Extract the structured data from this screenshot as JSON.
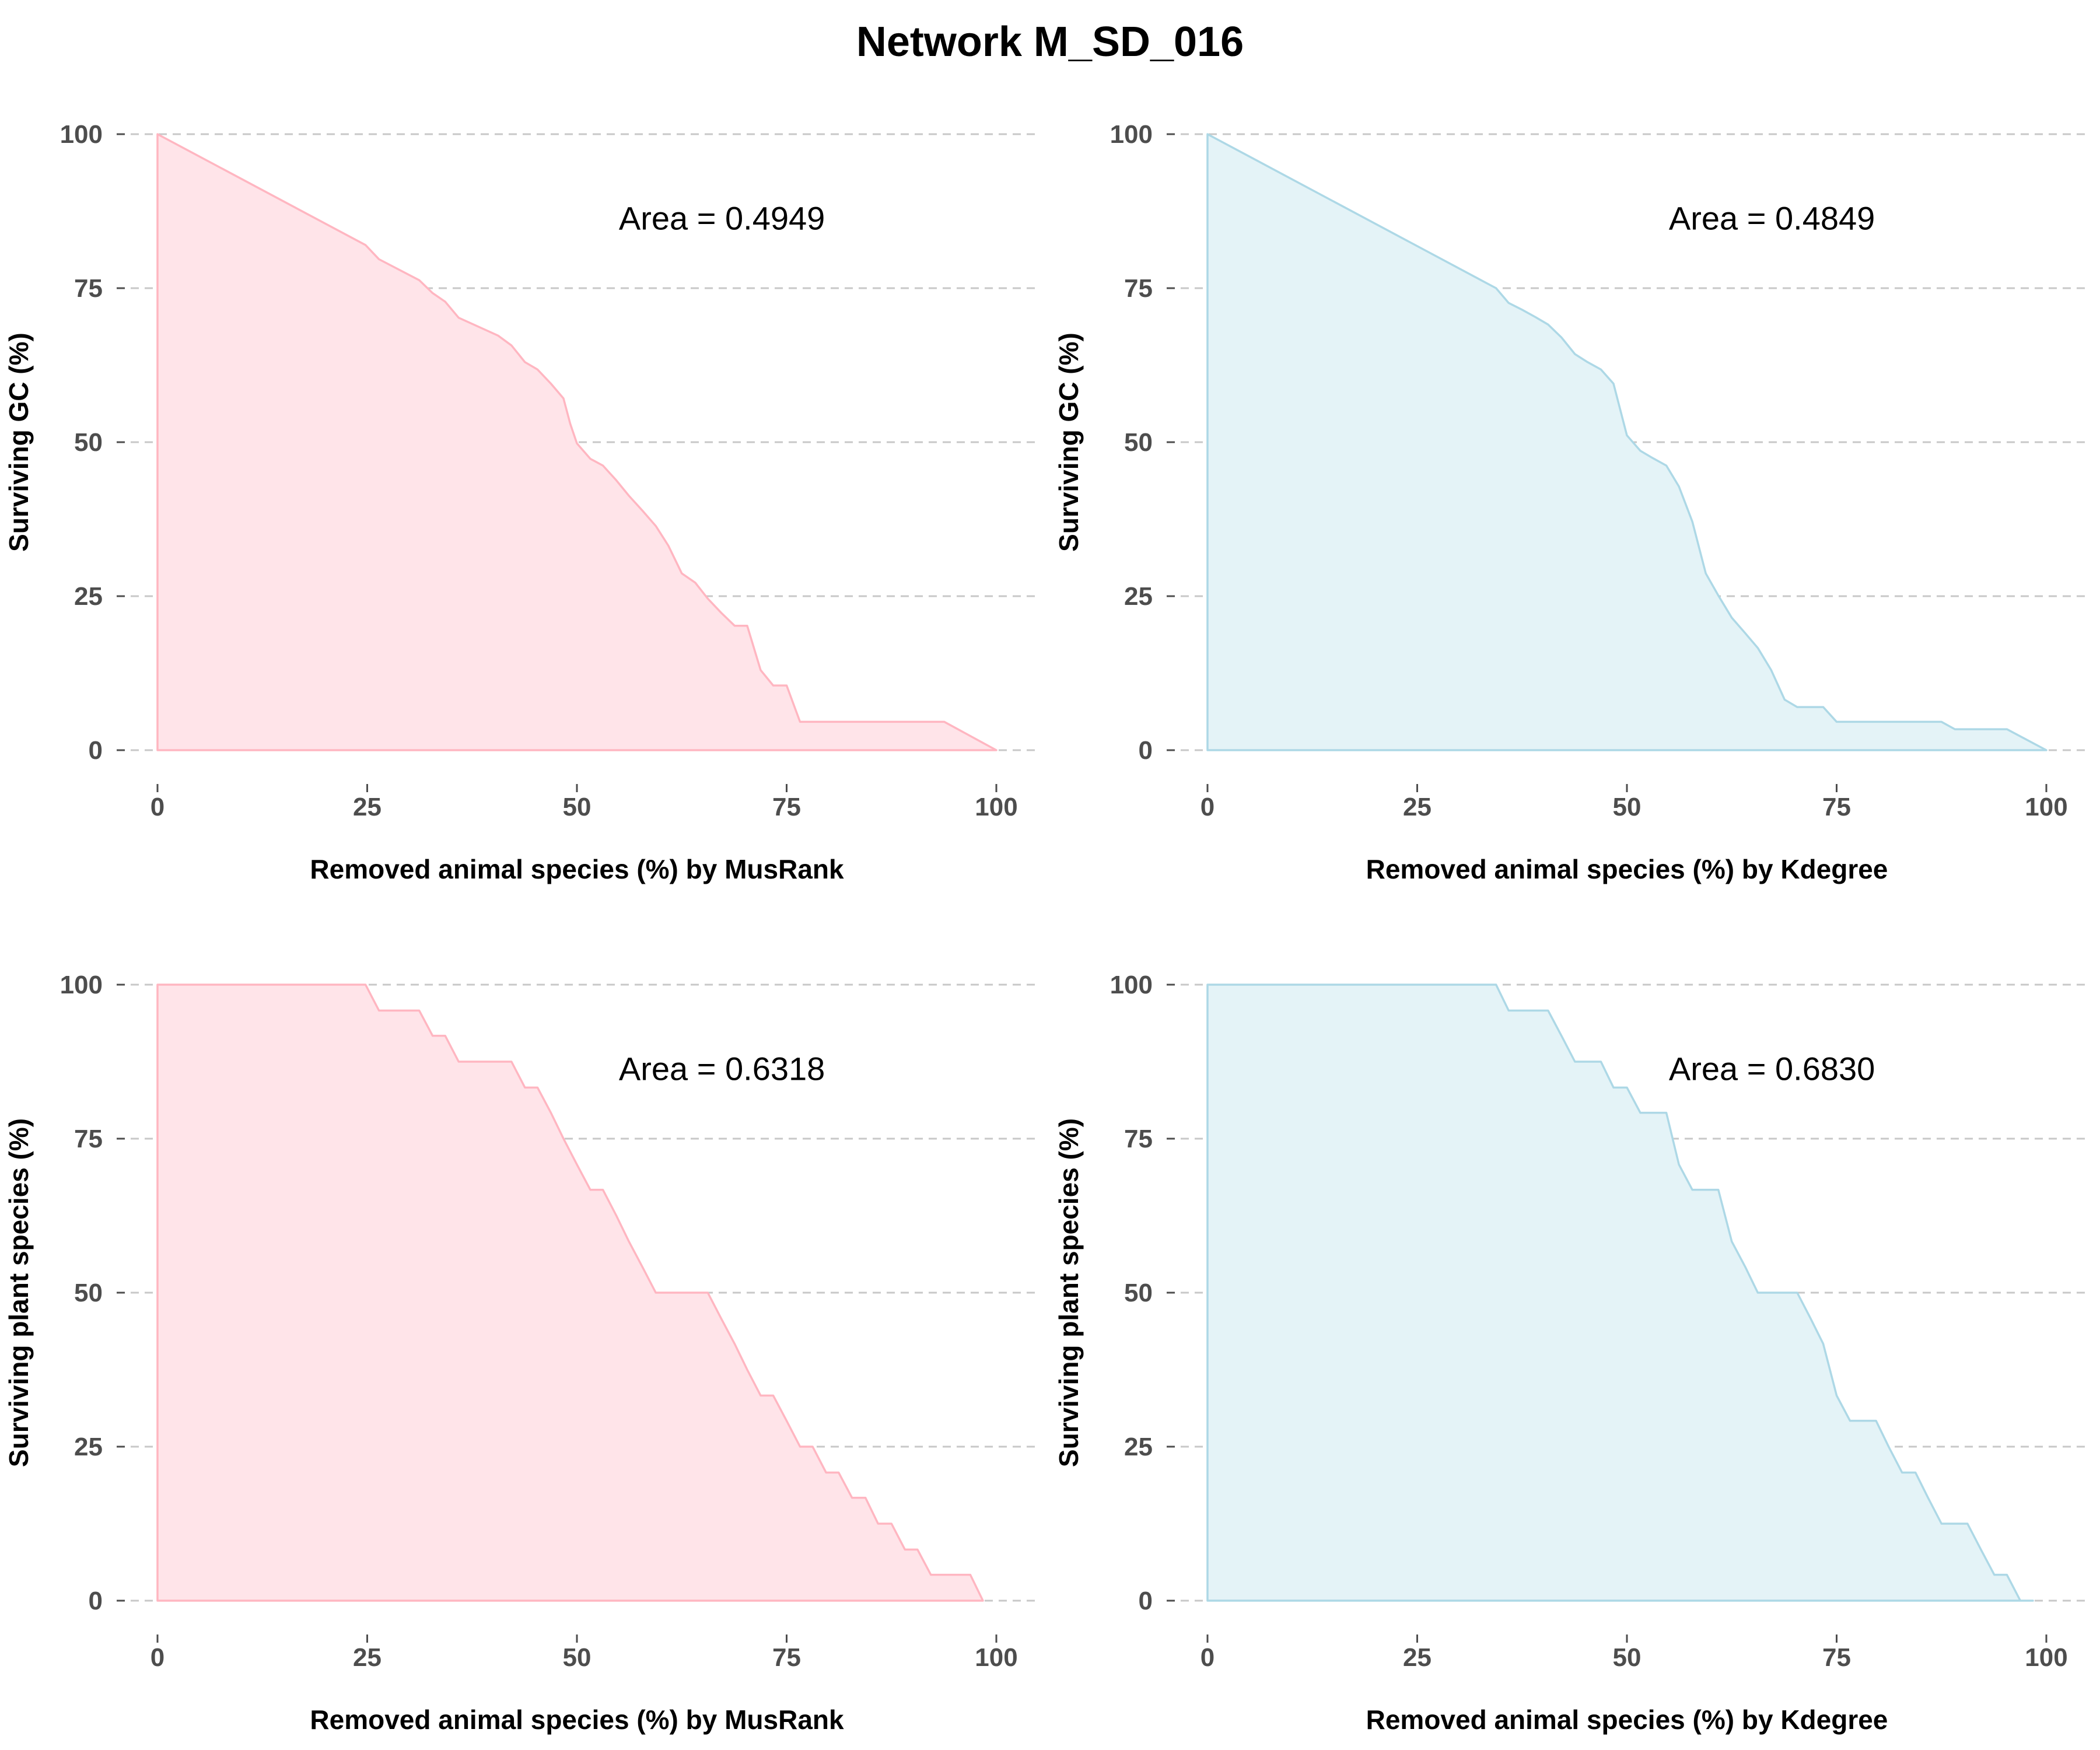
{
  "title": "Network M_SD_016",
  "chart_data": [
    {
      "type": "area",
      "xlabel": "Removed animal species (%) by MusRank",
      "ylabel": "Surviving GC (%)",
      "annotation": "Area = 0.4949",
      "xlim": [
        0,
        100
      ],
      "ylim": [
        0,
        100
      ],
      "xticks": [
        "0",
        "25",
        "50",
        "75",
        "100"
      ],
      "yticks": [
        "0",
        "25",
        "50",
        "75",
        "100"
      ],
      "grid": "horizontal dashed",
      "line_color": "#ffb6c1",
      "fill_color": "#ffe4e9",
      "x": [
        0,
        24.8,
        26.4,
        31.2,
        32.8,
        34.3,
        35.9,
        40.6,
        42.2,
        43.8,
        45.3,
        46.9,
        48.4,
        49.2,
        50.0,
        51.6,
        53.1,
        54.7,
        56.2,
        57.8,
        59.4,
        60.9,
        62.5,
        64.1,
        65.6,
        67.2,
        68.8,
        70.3,
        71.9,
        73.4,
        75.0,
        76.6,
        78.1,
        79.7,
        81.2,
        93.8,
        100
      ],
      "y": [
        100,
        82.0,
        79.7,
        76.3,
        74.2,
        72.8,
        70.2,
        67.3,
        65.7,
        63.0,
        61.8,
        59.5,
        57.1,
        53.0,
        49.8,
        47.3,
        46.2,
        43.8,
        41.3,
        38.9,
        36.4,
        33.2,
        28.7,
        27.2,
        24.6,
        22.3,
        20.2,
        20.2,
        13.0,
        10.5,
        10.5,
        4.6,
        4.6,
        4.6,
        4.6,
        4.6,
        0
      ]
    },
    {
      "type": "area",
      "xlabel": "Removed animal species (%) by Kdegree",
      "ylabel": "Surviving GC (%)",
      "annotation": "Area = 0.4849",
      "xlim": [
        0,
        100
      ],
      "ylim": [
        0,
        100
      ],
      "xticks": [
        "0",
        "25",
        "50",
        "75",
        "100"
      ],
      "yticks": [
        "0",
        "25",
        "50",
        "75",
        "100"
      ],
      "grid": "horizontal dashed",
      "line_color": "#add8e6",
      "fill_color": "#e4f3f7",
      "x": [
        0,
        34.4,
        35.9,
        37.5,
        39.1,
        40.6,
        42.2,
        43.8,
        45.3,
        46.9,
        48.4,
        50.0,
        51.6,
        53.1,
        54.7,
        56.2,
        57.8,
        59.4,
        60.9,
        62.5,
        64.1,
        65.6,
        67.2,
        68.8,
        70.3,
        71.9,
        73.4,
        75.0,
        76.6,
        78.1,
        79.7,
        81.2,
        82.8,
        84.4,
        85.9,
        87.5,
        89.1,
        90.6,
        92.2,
        93.8,
        95.3,
        100
      ],
      "y": [
        100,
        75.0,
        72.6,
        71.5,
        70.3,
        69.1,
        67.0,
        64.3,
        63.0,
        61.8,
        59.5,
        51.1,
        48.6,
        47.4,
        46.2,
        42.8,
        37.1,
        28.7,
        25.1,
        21.5,
        19.0,
        16.6,
        13.0,
        8.2,
        7.0,
        7.0,
        7.0,
        4.6,
        4.6,
        4.6,
        4.6,
        4.6,
        4.6,
        4.6,
        4.6,
        4.6,
        3.4,
        3.4,
        3.4,
        3.4,
        3.4,
        0
      ]
    },
    {
      "type": "area",
      "xlabel": "Removed animal species (%) by MusRank",
      "ylabel": "Surviving plant species (%)",
      "annotation": "Area = 0.6318",
      "xlim": [
        0,
        100
      ],
      "ylim": [
        0,
        100
      ],
      "xticks": [
        "0",
        "25",
        "50",
        "75",
        "100"
      ],
      "yticks": [
        "0",
        "25",
        "50",
        "75",
        "100"
      ],
      "grid": "horizontal dashed",
      "line_color": "#ffb6c1",
      "fill_color": "#ffe4e9",
      "x": [
        0,
        24.8,
        26.4,
        31.2,
        32.8,
        34.3,
        35.9,
        42.2,
        43.8,
        45.3,
        46.9,
        48.4,
        50.0,
        51.6,
        53.1,
        54.7,
        56.2,
        57.8,
        59.4,
        60.9,
        62.5,
        64.1,
        65.6,
        67.2,
        68.8,
        70.3,
        71.9,
        73.4,
        75.0,
        76.6,
        78.1,
        79.7,
        81.2,
        82.8,
        84.4,
        85.9,
        87.5,
        89.1,
        90.6,
        92.2,
        93.8,
        95.3,
        96.9,
        98.4
      ],
      "y": [
        100,
        100,
        95.8,
        95.8,
        91.7,
        91.7,
        87.5,
        87.5,
        83.3,
        83.3,
        79.2,
        75.0,
        70.8,
        66.7,
        66.7,
        62.5,
        58.3,
        54.2,
        50.0,
        50.0,
        50.0,
        50.0,
        50.0,
        45.8,
        41.7,
        37.5,
        33.3,
        33.3,
        29.2,
        25.0,
        25.0,
        20.8,
        20.8,
        16.7,
        16.7,
        12.5,
        12.5,
        8.3,
        8.3,
        4.2,
        4.2,
        4.2,
        4.2,
        0
      ]
    },
    {
      "type": "area",
      "xlabel": "Removed animal species (%) by Kdegree",
      "ylabel": "Surviving plant species (%)",
      "annotation": "Area = 0.6830",
      "xlim": [
        0,
        100
      ],
      "ylim": [
        0,
        100
      ],
      "xticks": [
        "0",
        "25",
        "50",
        "75",
        "100"
      ],
      "yticks": [
        "0",
        "25",
        "50",
        "75",
        "100"
      ],
      "grid": "horizontal dashed",
      "line_color": "#add8e6",
      "fill_color": "#e4f3f7",
      "x": [
        0,
        34.4,
        35.9,
        40.6,
        42.2,
        43.8,
        45.3,
        46.9,
        48.4,
        50.0,
        51.6,
        53.1,
        54.7,
        56.2,
        57.8,
        59.4,
        60.9,
        62.5,
        64.1,
        65.6,
        67.2,
        68.8,
        70.3,
        71.9,
        73.4,
        75.0,
        76.6,
        78.1,
        79.7,
        81.2,
        82.8,
        84.4,
        85.9,
        87.5,
        89.1,
        90.6,
        92.2,
        93.8,
        95.3,
        96.9,
        98.4
      ],
      "y": [
        100,
        100,
        95.8,
        95.8,
        91.7,
        87.5,
        87.5,
        87.5,
        83.3,
        83.3,
        79.2,
        79.2,
        79.2,
        70.8,
        66.7,
        66.7,
        66.7,
        58.3,
        54.2,
        50.0,
        50.0,
        50.0,
        50.0,
        45.8,
        41.7,
        33.3,
        29.2,
        29.2,
        29.2,
        25.0,
        20.8,
        20.8,
        16.7,
        12.5,
        12.5,
        12.5,
        8.3,
        4.2,
        4.2,
        0,
        0
      ]
    }
  ]
}
